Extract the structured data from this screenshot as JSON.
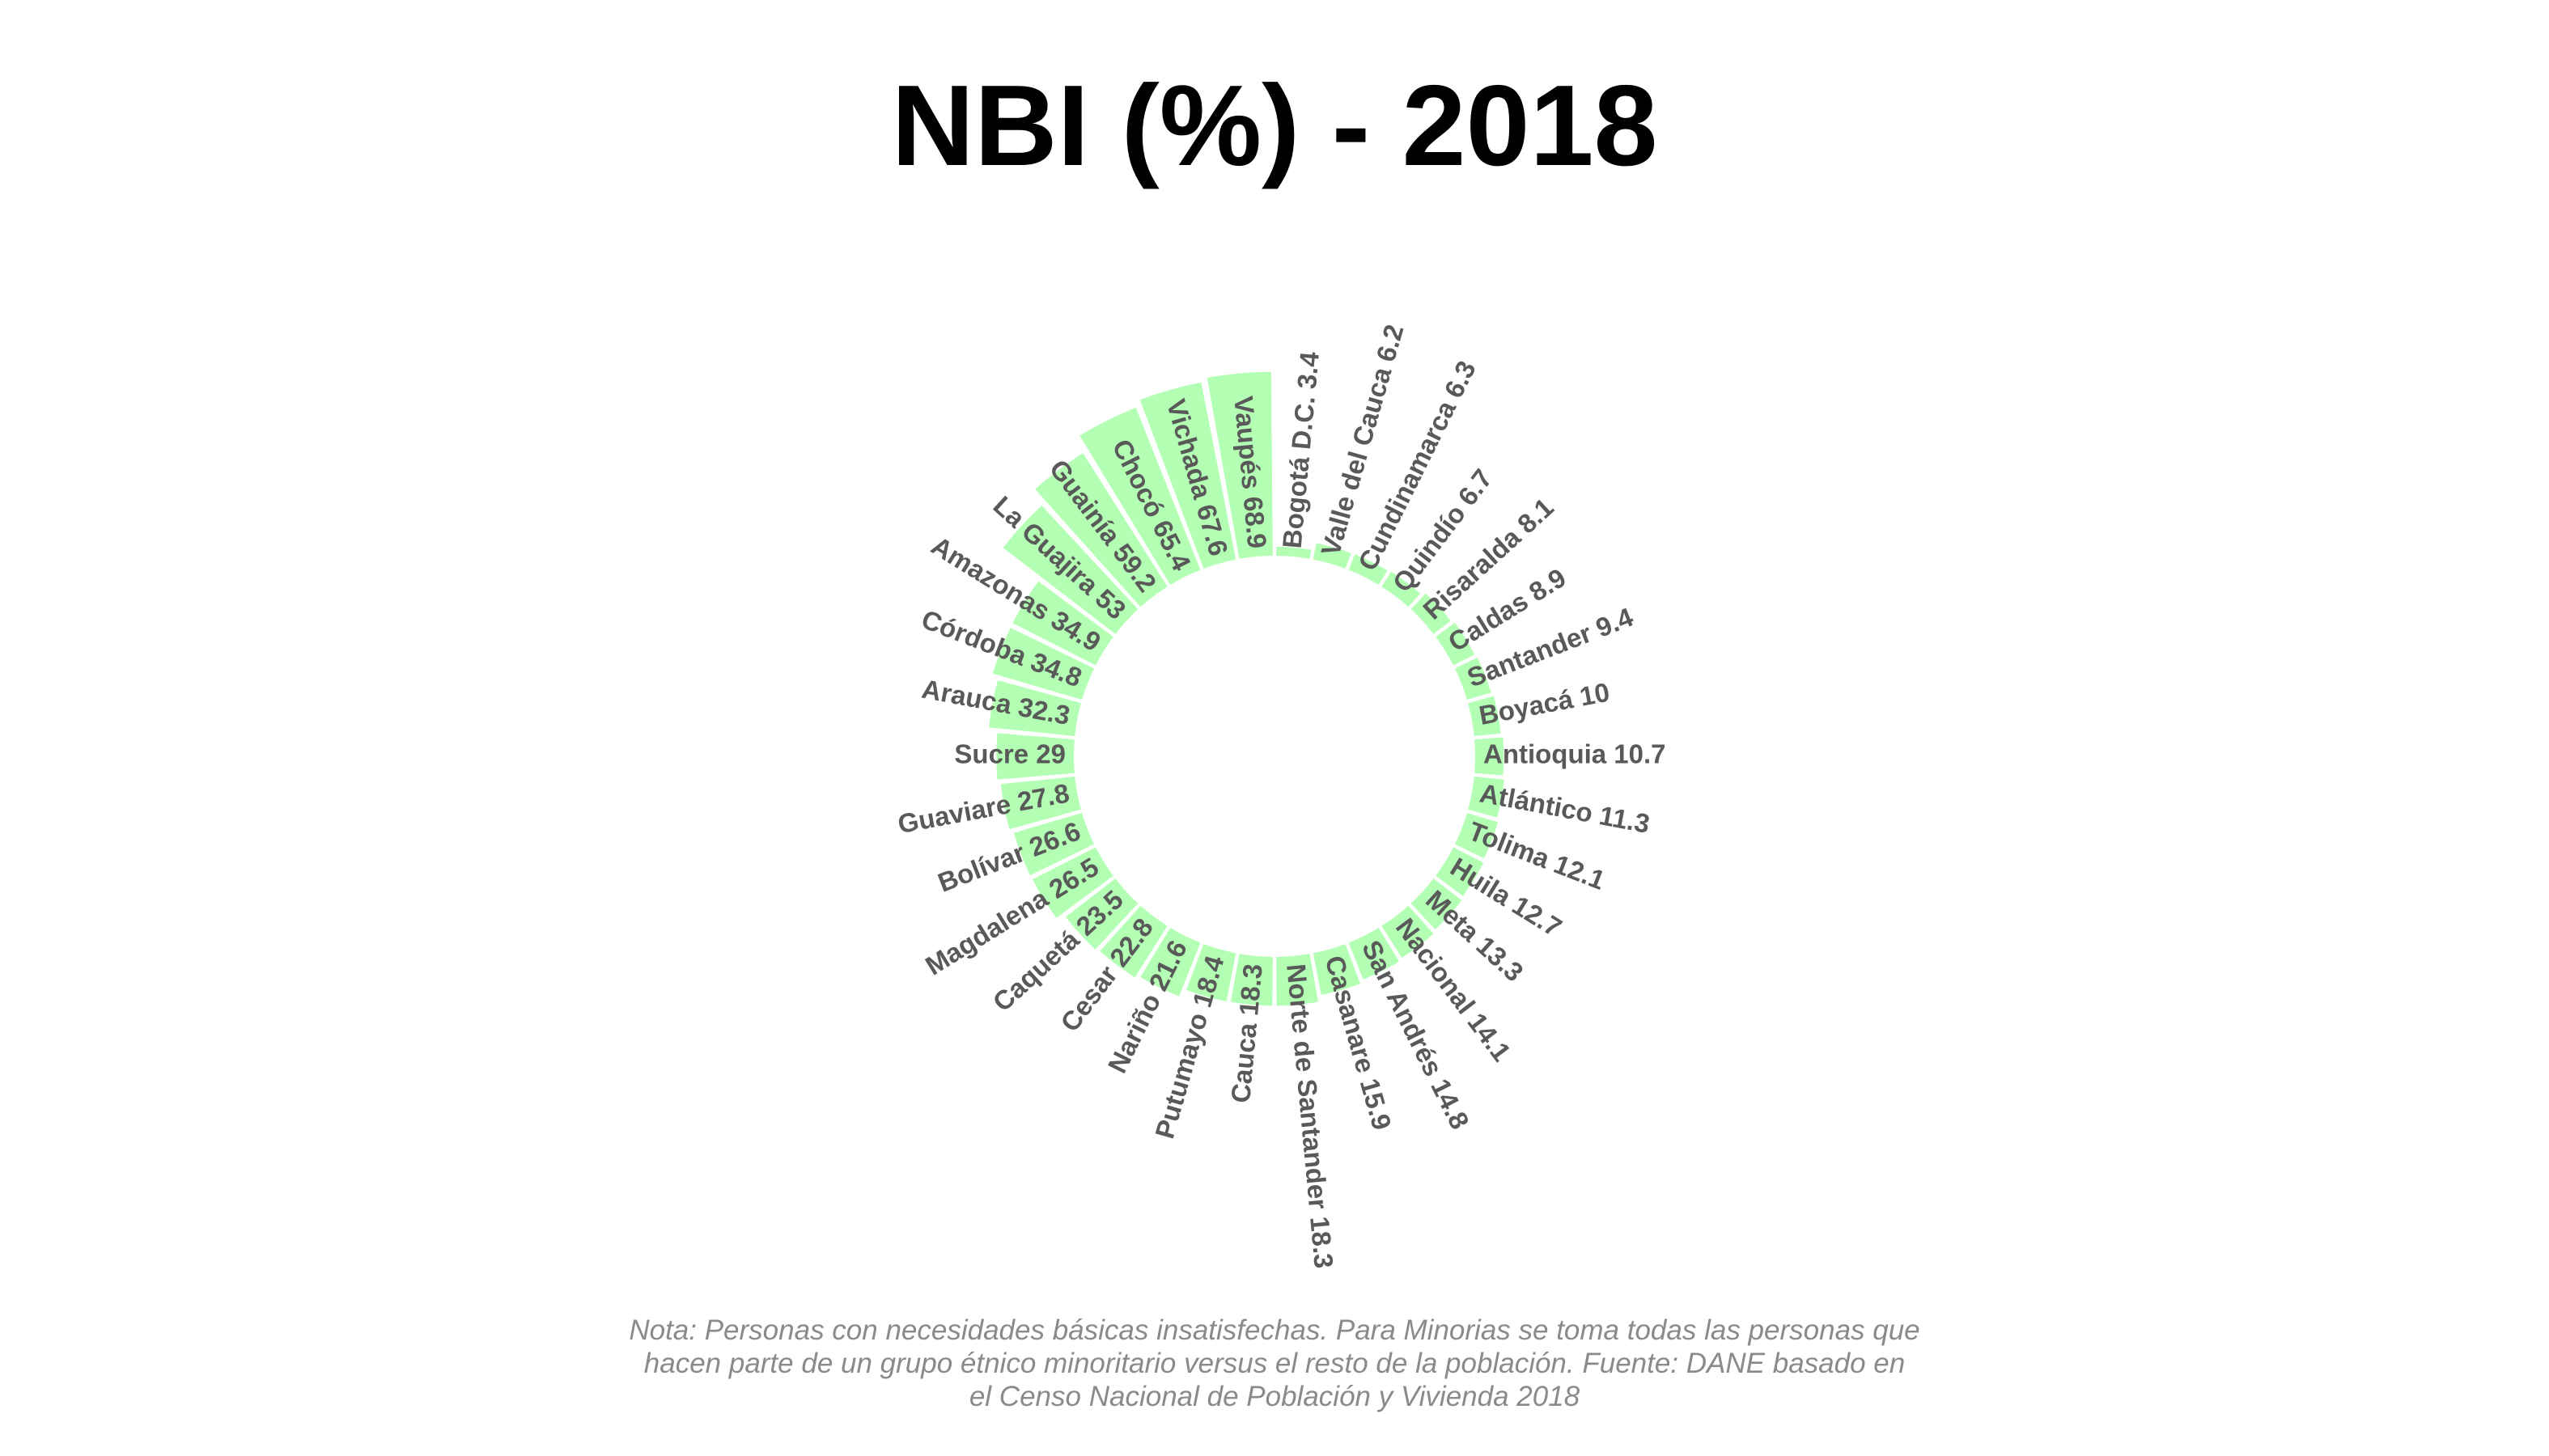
{
  "title": "NBI (%) - 2018",
  "note": "Nota: Personas con necesidades básicas insatisfechas. Para Minorias se toma todas las personas que\nhacen parte de un grupo étnico minoritario versus el resto de la población. Fuente: DANE basado en\nel Censo Nacional de Población y Vivienda 2018",
  "colors": {
    "bar": "#b3ffb3",
    "label": "#595959"
  },
  "chart_data": {
    "type": "bar",
    "layout": "circular",
    "categories": [
      "Bogotá D.C.",
      "Valle del Cauca",
      "Cundinamarca",
      "Quindío",
      "Risaralda",
      "Caldas",
      "Santander",
      "Boyacá",
      "Antioquia",
      "Atlántico",
      "Tolima",
      "Huila",
      "Meta",
      "Nacional",
      "San Andrés",
      "Casanare",
      "Norte de Santander",
      "Cauca",
      "Putumayo",
      "Nariño",
      "Cesar",
      "Caquetá",
      "Magdalena",
      "Bolívar",
      "Guaviare",
      "Sucre",
      "Arauca",
      "Córdoba",
      "Amazonas",
      "La Guajira",
      "Guainía",
      "Chocó",
      "Vichada",
      "Vaupés"
    ],
    "values": [
      3.4,
      6.2,
      6.3,
      6.7,
      8.1,
      8.9,
      9.4,
      10,
      10.7,
      11.3,
      12.1,
      12.7,
      13.3,
      14.1,
      14.8,
      15.9,
      18.3,
      18.3,
      18.4,
      21.6,
      22.8,
      23.5,
      26.5,
      26.6,
      27.8,
      29,
      32.3,
      34.8,
      34.9,
      53,
      59.2,
      65.4,
      67.6,
      68.9
    ],
    "labels": [
      "Bogotá D.C. 3.4",
      "Valle del Cauca 6.2",
      "Cundinamarca 6.3",
      "Quindío 6.7",
      "Risaralda 8.1",
      "Caldas 8.9",
      "Santander 9.4",
      "Boyacá 10",
      "Antioquia 10.7",
      "Atlántico 11.3",
      "Tolima 12.1",
      "Huila 12.7",
      "Meta 13.3",
      "Nacional 14.1",
      "San Andrés 14.8",
      "Casanare 15.9",
      "Norte de Santander 18.3",
      "Cauca 18.3",
      "Putumayo 18.4",
      "Nariño 21.6",
      "Cesar 22.8",
      "Caquetá 23.5",
      "Magdalena 26.5",
      "Bolívar 26.6",
      "Guaviare 27.8",
      "Sucre 29",
      "Arauca 32.3",
      "Córdoba 34.8",
      "Amazonas 34.9",
      "La Guajira 53",
      "Guainía 59.2",
      "Chocó 65.4",
      "Vichada 67.6",
      "Vaupés 68.9"
    ],
    "grid": false,
    "legend": "none"
  }
}
